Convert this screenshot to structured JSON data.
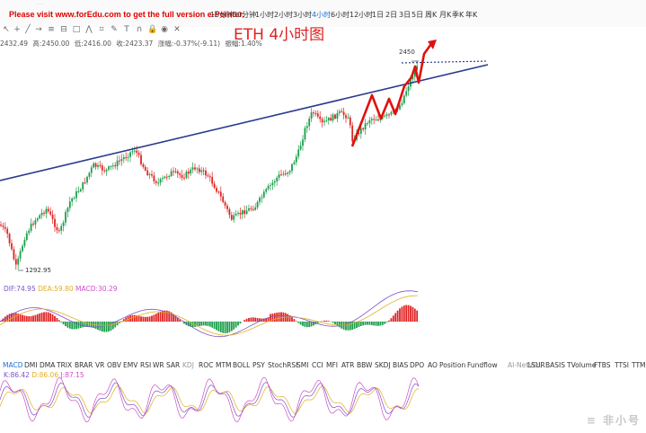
{
  "watermark": "Please visit www.forEdu.com to get the full version e-Pointer.",
  "timeframes": [
    "15分钟",
    "30分钟",
    "1小时",
    "2小时",
    "3小时",
    "4小时",
    "6小时",
    "12小时",
    "1日",
    "2日",
    "3日",
    "5日",
    "周K",
    "月K",
    "季K",
    "年K"
  ],
  "active_timeframe": "4小时",
  "ohlc": {
    "open": "2432.49",
    "high": "高:2450.00",
    "low": "低:2416.00",
    "close": "收:2423.37",
    "change": "涨幅:-0.37%(-9.11)",
    "amplitude": "振幅:1.40%"
  },
  "chart_title": "ETH 4小时图",
  "price_labels": {
    "high": "2450",
    "low": "1292.95"
  },
  "macd_legend": {
    "dif": "DIF:74.95",
    "dea": "DEA:59.80",
    "macd": "MACD:30.29"
  },
  "indicator_tabs": [
    "MACD",
    "DMI",
    "DMA",
    "TRIX",
    "BRAR",
    "VR",
    "OBV",
    "EMV",
    "RSI",
    "WR",
    "SAR",
    "KDJ",
    "ROC",
    "MTM",
    "BOLL",
    "PSY",
    "StochRSI",
    "SMI",
    "CCI",
    "MFI",
    "ATR",
    "BBW",
    "SKDJ",
    "BIAS",
    "DPO",
    "AO",
    "Position",
    "Fundflow",
    "AI-NetVOL",
    "LSUR",
    "BASIS",
    "TVolume",
    "FTBS",
    "TTSI",
    "TTML"
  ],
  "kdj_legend": {
    "k": "K:86.42",
    "d": "D:86.06",
    "j": "J:87.15"
  },
  "logo": "≡ 非小号",
  "colors": {
    "up": "#1b9e4b",
    "down": "#e02424",
    "trendline": "#2a3a8c",
    "arrow": "#e01010",
    "dif": "#7b52c9",
    "dea": "#e0b020",
    "k": "#7b52c9",
    "d": "#e0b020",
    "j": "#d04fc8"
  },
  "chart_data": {
    "type": "candlestick",
    "title": "ETH 4小时图",
    "y_high_label": 2450,
    "y_low_label": 1292.95,
    "ohlc_last": {
      "open": 2432.49,
      "high": 2450.0,
      "low": 2416.0,
      "close": 2423.37
    },
    "macd": {
      "dif": 74.95,
      "dea": 59.8,
      "macd": 30.29
    },
    "kdj": {
      "k": 86.42,
      "d": 86.06,
      "j": 87.15
    }
  }
}
